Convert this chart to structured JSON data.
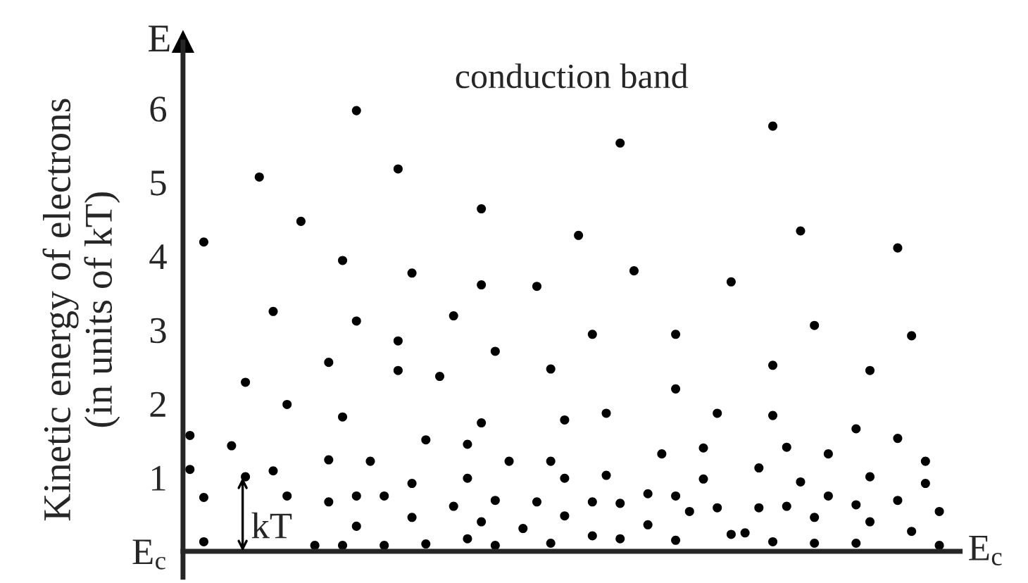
{
  "chart_data": {
    "type": "scatter",
    "ylabel": "Kinetic energy of electrons\n(in units of kT)",
    "annotations": [
      {
        "text": "conduction band"
      },
      {
        "text": "E"
      },
      {
        "text": "E$_{c}$"
      },
      {
        "text": "kT"
      }
    ],
    "categories": [
      null,
      null,
      null,
      null,
      null,
      null,
      null,
      null,
      null,
      null,
      null,
      null,
      null,
      null,
      null,
      null,
      null,
      null,
      null,
      null,
      null,
      null,
      null,
      null,
      null,
      null,
      null,
      null,
      null,
      null,
      null,
      null,
      null,
      null,
      null,
      null,
      null,
      null,
      null,
      null,
      null,
      null,
      null,
      null,
      null,
      null,
      null,
      null,
      null,
      null,
      null,
      null,
      null,
      null,
      null,
      null
    ],
    "series": [
      {
        "color": "#000000",
        "values": [
          1.57,
          4.19,
          null,
          1.43,
          2.29,
          5.07,
          3.25,
          1.99,
          4.47,
          0.08,
          2.56,
          3.94,
          5.97,
          1.22,
          0.75,
          5.18,
          3.77,
          1.51,
          2.37,
          3.19,
          1.45,
          4.64,
          2.71,
          1.22,
          0.31,
          3.59,
          2.47,
          1.78,
          4.28,
          2.94,
          1.87,
          5.53,
          3.8,
          0.78,
          1.32,
          2.94,
          0.54,
          1.4,
          1.87,
          3.65,
          0.25,
          1.13,
          5.76,
          1.41,
          4.34,
          3.06,
          1.32,
          null,
          1.66,
          2.45,
          null,
          4.11,
          2.92,
          1.22,
          0.54,
          null
        ]
      },
      {
        "color": "#000000",
        "values": [
          1.11,
          0.73,
          null,
          null,
          1.01,
          null,
          1.09,
          0.75,
          null,
          null,
          1.24,
          1.82,
          3.12,
          null,
          0.08,
          2.85,
          0.92,
          0.1,
          null,
          0.61,
          0.99,
          3.61,
          0.69,
          null,
          null,
          0.67,
          1.22,
          0.99,
          null,
          0.67,
          1.03,
          0.65,
          null,
          0.36,
          null,
          2.2,
          null,
          0.98,
          0.59,
          0.23,
          null,
          0.59,
          2.52,
          0.61,
          0.94,
          0.46,
          0.75,
          null,
          0.63,
          1.01,
          null,
          1.53,
          0.27,
          0.92,
          0.08,
          null
        ]
      },
      {
        "color": "#000000",
        "values": [
          null,
          0.13,
          null,
          null,
          null,
          null,
          null,
          null,
          null,
          null,
          0.67,
          0.08,
          0.75,
          null,
          null,
          2.45,
          0.46,
          null,
          null,
          null,
          0.17,
          1.74,
          0.08,
          null,
          null,
          null,
          0.11,
          0.48,
          null,
          0.21,
          null,
          0.17,
          null,
          null,
          null,
          0.75,
          null,
          null,
          null,
          null,
          null,
          null,
          1.84,
          null,
          null,
          0.11,
          null,
          null,
          0.11,
          0.4,
          null,
          0.69,
          null,
          null,
          null,
          null
        ]
      },
      {
        "color": "#000000",
        "values": [
          null,
          null,
          null,
          null,
          null,
          null,
          null,
          null,
          null,
          null,
          null,
          null,
          0.34,
          null,
          null,
          null,
          null,
          null,
          null,
          null,
          null,
          0.4,
          null,
          null,
          null,
          null,
          null,
          null,
          null,
          null,
          null,
          null,
          null,
          null,
          null,
          0.15,
          null,
          null,
          null,
          null,
          null,
          null,
          0.13,
          null,
          null,
          null,
          null,
          null,
          null,
          null,
          null,
          null,
          null,
          null,
          null,
          null
        ]
      }
    ],
    "ylim": [
      -0.35,
      6.9
    ],
    "yticks": [
      {
        "value": 0,
        "label": "E$_{c}$"
      },
      1,
      2,
      3,
      4,
      5,
      6
    ],
    "tick_labels": "y",
    "marker": "circle"
  }
}
